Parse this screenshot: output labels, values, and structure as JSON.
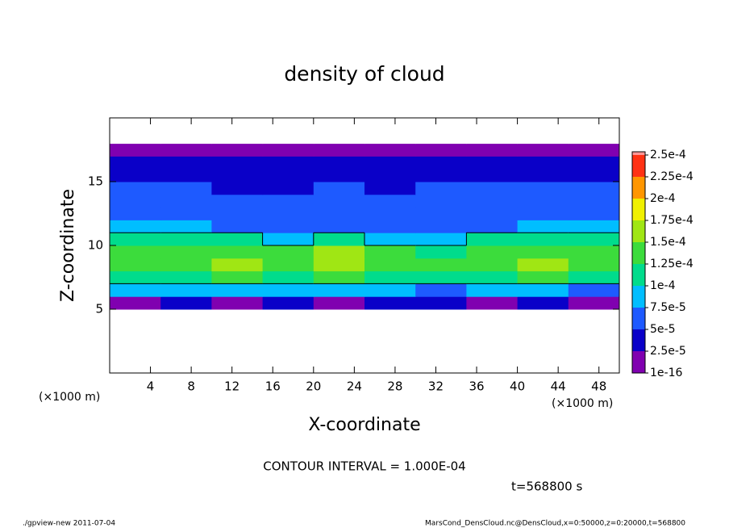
{
  "chart_data": {
    "type": "heatmap",
    "title": "density of cloud",
    "x_label": "X-coordinate",
    "y_label": "Z-coordinate",
    "x_unit": "(×1000 m)",
    "y_unit": "(×1000 m)",
    "xlim": [
      0,
      50
    ],
    "ylim": [
      0,
      20
    ],
    "xticks": [
      4,
      8,
      12,
      16,
      20,
      24,
      28,
      32,
      36,
      40,
      44,
      48
    ],
    "yticks": [
      5,
      10,
      15
    ],
    "x_edges": [
      0,
      5,
      10,
      15,
      20,
      25,
      30,
      35,
      40,
      45,
      50
    ],
    "y_edges": [
      0,
      1,
      2,
      3,
      4,
      5,
      6,
      7,
      8,
      9,
      10,
      11,
      12,
      13,
      14,
      15,
      16,
      17,
      18,
      19,
      20
    ],
    "z": [
      [
        0,
        0,
        0,
        0,
        0,
        0,
        0,
        0,
        0,
        0
      ],
      [
        0,
        0,
        0,
        0,
        0,
        0,
        0,
        0,
        0,
        0
      ],
      [
        0,
        0,
        0,
        0,
        0,
        0,
        0,
        0,
        0,
        0
      ],
      [
        0,
        0,
        0,
        0,
        0,
        0,
        0,
        0,
        0,
        0
      ],
      [
        0,
        0,
        0,
        0,
        0,
        0,
        0,
        0,
        0,
        0
      ],
      [
        2e-05,
        3e-05,
        2e-05,
        3e-05,
        2e-05,
        3e-05,
        3e-05,
        2e-05,
        3e-05,
        2e-05
      ],
      [
        8e-05,
        9e-05,
        8e-05,
        9e-05,
        9e-05,
        8e-05,
        7e-05,
        9e-05,
        8e-05,
        7e-05
      ],
      [
        0.000115,
        0.00012,
        0.000125,
        0.00012,
        0.00013,
        0.00012,
        0.00011,
        0.00012,
        0.000125,
        0.00011
      ],
      [
        0.000135,
        0.000145,
        0.000155,
        0.00014,
        0.000155,
        0.000145,
        0.00013,
        0.00014,
        0.00015,
        0.000135
      ],
      [
        0.000135,
        0.00014,
        0.000145,
        0.00014,
        0.00016,
        0.000145,
        0.000115,
        0.00013,
        0.000135,
        0.00013
      ],
      [
        0.000105,
        0.000105,
        0.000102,
        9e-05,
        0.000115,
        9.5e-05,
        8e-05,
        0.000105,
        0.000105,
        0.000105
      ],
      [
        8e-05,
        7.5e-05,
        7e-05,
        7e-05,
        6.5e-05,
        7e-05,
        6.5e-05,
        7e-05,
        7.5e-05,
        8e-05
      ],
      [
        6.5e-05,
        6e-05,
        6e-05,
        5.5e-05,
        6e-05,
        6e-05,
        6e-05,
        6e-05,
        6.5e-05,
        6.5e-05
      ],
      [
        5.5e-05,
        5.5e-05,
        5e-05,
        5e-05,
        5.5e-05,
        5.5e-05,
        5.5e-05,
        5.5e-05,
        5.5e-05,
        6e-05
      ],
      [
        5e-05,
        5e-05,
        4.5e-05,
        4.5e-05,
        5e-05,
        4.5e-05,
        5e-05,
        5e-05,
        5e-05,
        5e-05
      ],
      [
        4.5e-05,
        4.5e-05,
        4e-05,
        4.5e-05,
        4.5e-05,
        4e-05,
        4.5e-05,
        4.5e-05,
        4e-05,
        4.5e-05
      ],
      [
        2.6e-05,
        2.6e-05,
        2.6e-05,
        2.6e-05,
        2.6e-05,
        2.6e-05,
        2.6e-05,
        2.6e-05,
        2.6e-05,
        2.6e-05
      ],
      [
        1e-06,
        1e-06,
        1e-06,
        1e-06,
        1e-06,
        1e-06,
        1e-06,
        1e-06,
        1e-06,
        1e-06
      ],
      [
        0,
        0,
        0,
        0,
        0,
        0,
        0,
        0,
        0,
        0
      ],
      [
        0,
        0,
        0,
        0,
        0,
        0,
        0,
        0,
        0,
        0
      ]
    ],
    "levels": [
      {
        "value": 1e-16,
        "label": "1e-16"
      },
      {
        "value": 2.5e-05,
        "label": "2.5e-5"
      },
      {
        "value": 5e-05,
        "label": "5e-5"
      },
      {
        "value": 7.5e-05,
        "label": "7.5e-5"
      },
      {
        "value": 0.0001,
        "label": "1e-4"
      },
      {
        "value": 0.000125,
        "label": "1.25e-4"
      },
      {
        "value": 0.00015,
        "label": "1.5e-4"
      },
      {
        "value": 0.000175,
        "label": "1.75e-4"
      },
      {
        "value": 0.0002,
        "label": "2e-4"
      },
      {
        "value": 0.000225,
        "label": "2.25e-4"
      },
      {
        "value": 0.00025,
        "label": "2.5e-4"
      }
    ],
    "colors": [
      "#8000b0",
      "#0a00c8",
      "#1e5aff",
      "#00beff",
      "#00dc8c",
      "#3cdc3c",
      "#a0e614",
      "#f0f000",
      "#ff9600",
      "#ff3214",
      "#ff9696"
    ],
    "contour_interval": 0.0001,
    "contour_label": "CONTOUR INTERVAL = 1.000E-04",
    "time_label": "t=568800 s",
    "footer_left": "./gpview-new  2011-07-04",
    "footer_right": "MarsCond_DensCloud.nc@DensCloud,x=0:50000,z=0:20000,t=568800"
  }
}
